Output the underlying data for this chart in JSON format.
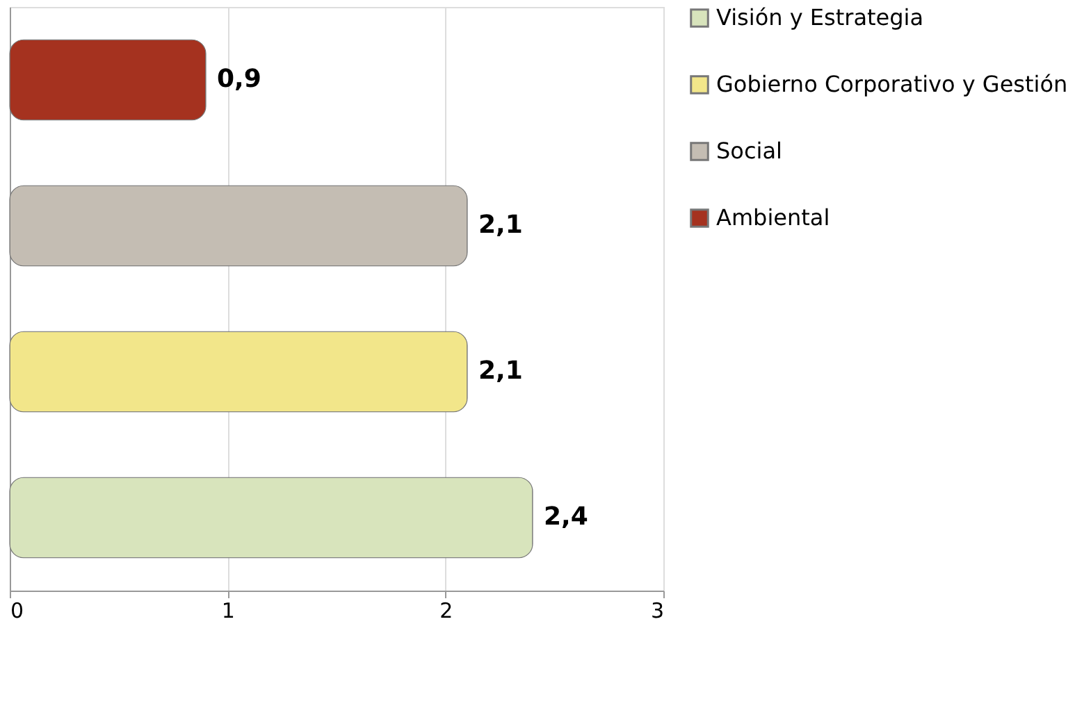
{
  "chart_data": {
    "type": "bar",
    "orientation": "horizontal",
    "categories": [
      null,
      null,
      null,
      null
    ],
    "series": [
      {
        "name": "Visión y Estrategia",
        "color": "#d8e4bc",
        "values": [
          null,
          null,
          null,
          2.4
        ],
        "value_labels": [
          null,
          null,
          null,
          "2,4"
        ]
      },
      {
        "name": "Gobierno Corporativo y Gestión",
        "color": "#f2e68a",
        "values": [
          null,
          null,
          2.1,
          null
        ],
        "value_labels": [
          null,
          null,
          "2,1",
          null
        ]
      },
      {
        "name": "Social",
        "color": "#c4bdb3",
        "values": [
          null,
          2.1,
          null,
          null
        ],
        "value_labels": [
          null,
          "2,1",
          null,
          null
        ]
      },
      {
        "name": "Ambiental",
        "color": "#a5321f",
        "values": [
          0.9,
          null,
          null,
          null
        ],
        "value_labels": [
          "0,9",
          null,
          null,
          null
        ]
      }
    ],
    "xlim": [
      0,
      3
    ],
    "xticks": [
      0,
      1,
      2,
      3
    ],
    "grid": "x",
    "legend": "right"
  }
}
